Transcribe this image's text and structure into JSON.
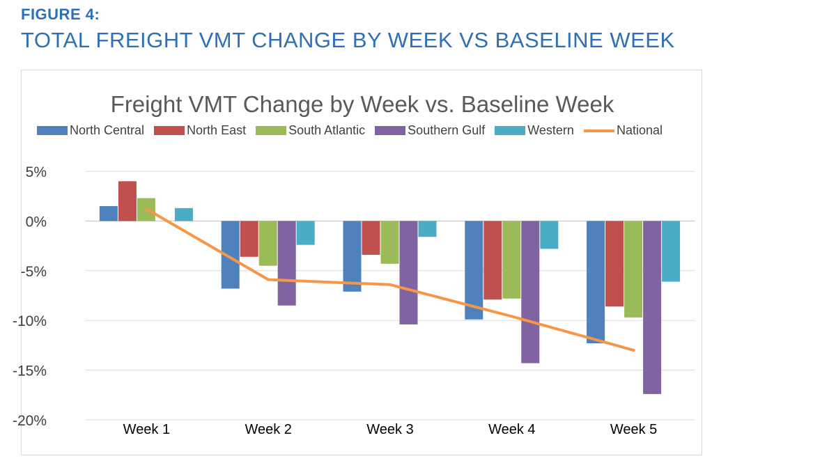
{
  "figure": {
    "label": "FIGURE 4:",
    "heading": "TOTAL FREIGHT VMT CHANGE BY WEEK VS BASELINE WEEK"
  },
  "chart_data": {
    "type": "bar",
    "title": "Freight VMT Change by Week vs. Baseline Week",
    "xlabel": "",
    "ylabel": "",
    "categories": [
      "Week 1",
      "Week 2",
      "Week 3",
      "Week 4",
      "Week 5"
    ],
    "ylim": [
      -20,
      5
    ],
    "yticks": [
      5,
      0,
      -5,
      -10,
      -15,
      -20
    ],
    "ytick_labels": [
      "5%",
      "0%",
      "-5%",
      "-10%",
      "-15%",
      "-20%"
    ],
    "grid": true,
    "legend": "top",
    "series": [
      {
        "name": "North Central",
        "color": "#4f81bd",
        "values": [
          1.5,
          -6.8,
          -7.1,
          -9.9,
          -12.3
        ]
      },
      {
        "name": "North East",
        "color": "#c0504d",
        "values": [
          4.0,
          -3.6,
          -3.4,
          -7.9,
          -8.6
        ]
      },
      {
        "name": "South Atlantic",
        "color": "#9bbb59",
        "values": [
          2.3,
          -4.5,
          -4.3,
          -7.8,
          -9.7
        ]
      },
      {
        "name": "Southern Gulf",
        "color": "#8064a2",
        "values": [
          0,
          -8.5,
          -10.4,
          -14.3,
          -17.4
        ]
      },
      {
        "name": "Western",
        "color": "#4bacc6",
        "values": [
          1.3,
          -2.4,
          -1.6,
          -2.8,
          -6.1
        ]
      }
    ],
    "line_series": [
      {
        "name": "National",
        "color": "#f79646",
        "values": [
          1.2,
          -5.9,
          -6.4,
          -9.6,
          -13.0
        ]
      }
    ]
  }
}
